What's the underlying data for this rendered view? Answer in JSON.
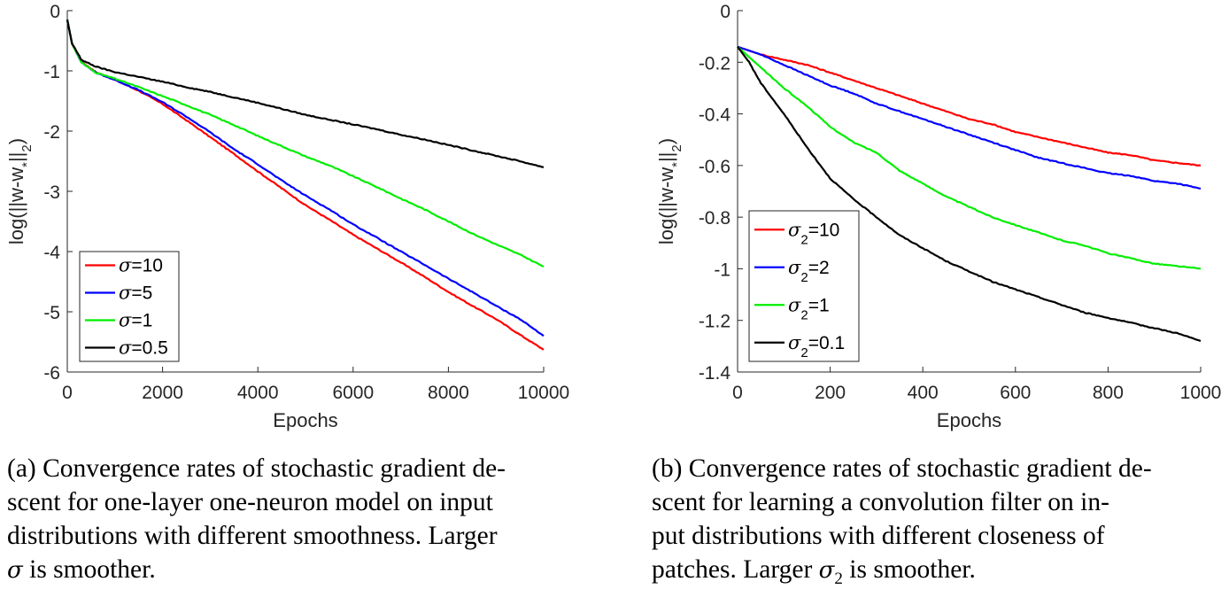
{
  "chart_data": [
    {
      "type": "line",
      "id": "a",
      "xlabel": "Epochs",
      "ylabel_parts": [
        "log(||w-w",
        "*",
        "||",
        "2",
        ")"
      ],
      "xlim": [
        0,
        10000
      ],
      "ylim": [
        -6,
        0
      ],
      "xticks": [
        0,
        2000,
        4000,
        6000,
        8000,
        10000
      ],
      "xtick_labels": [
        "0",
        "2000",
        "4000",
        "6000",
        "8000",
        "10000"
      ],
      "yticks": [
        0,
        -1,
        -2,
        -3,
        -4,
        -5,
        -6
      ],
      "ytick_labels": [
        "0",
        "-1",
        "-2",
        "-3",
        "-4",
        "-5",
        "-6"
      ],
      "legend_location": "bottom-left",
      "legend_symbol": "σ",
      "legend_sub": "",
      "series": [
        {
          "name": "σ=10",
          "legend_value": "=10",
          "color": "#ff0000",
          "x": [
            0,
            100,
            300,
            600,
            1000,
            1500,
            2000,
            2500,
            3000,
            3500,
            4000,
            4500,
            5000,
            5500,
            6000,
            6500,
            7000,
            7500,
            8000,
            8500,
            9000,
            9500,
            10000
          ],
          "y": [
            -0.15,
            -0.55,
            -0.85,
            -1.02,
            -1.15,
            -1.33,
            -1.55,
            -1.82,
            -2.1,
            -2.38,
            -2.67,
            -2.95,
            -3.23,
            -3.47,
            -3.72,
            -3.95,
            -4.18,
            -4.42,
            -4.67,
            -4.9,
            -5.12,
            -5.38,
            -5.63
          ]
        },
        {
          "name": "σ=5",
          "legend_value": "=5",
          "color": "#0000ff",
          "x": [
            0,
            100,
            300,
            600,
            1000,
            1500,
            2000,
            2500,
            3000,
            3500,
            4000,
            4500,
            5000,
            5500,
            6000,
            6500,
            7000,
            7500,
            8000,
            8500,
            9000,
            9500,
            10000
          ],
          "y": [
            -0.15,
            -0.55,
            -0.86,
            -1.03,
            -1.15,
            -1.32,
            -1.52,
            -1.76,
            -2.02,
            -2.3,
            -2.55,
            -2.82,
            -3.07,
            -3.3,
            -3.55,
            -3.77,
            -4.0,
            -4.22,
            -4.45,
            -4.67,
            -4.9,
            -5.12,
            -5.4
          ]
        },
        {
          "name": "σ=1",
          "legend_value": "=1",
          "color": "#00ee00",
          "x": [
            0,
            100,
            300,
            600,
            1000,
            1500,
            2000,
            2500,
            3000,
            3500,
            4000,
            4500,
            5000,
            5500,
            6000,
            6500,
            7000,
            7500,
            8000,
            8500,
            9000,
            9500,
            10000
          ],
          "y": [
            -0.15,
            -0.55,
            -0.86,
            -1.03,
            -1.13,
            -1.27,
            -1.42,
            -1.57,
            -1.73,
            -1.9,
            -2.08,
            -2.25,
            -2.42,
            -2.57,
            -2.75,
            -2.93,
            -3.12,
            -3.3,
            -3.5,
            -3.7,
            -3.88,
            -4.05,
            -4.25
          ]
        },
        {
          "name": "σ=0.5",
          "legend_value": "=0.5",
          "color": "#000000",
          "x": [
            0,
            100,
            300,
            600,
            1000,
            1500,
            2000,
            2500,
            3000,
            3500,
            4000,
            4500,
            5000,
            5500,
            6000,
            6500,
            7000,
            7500,
            8000,
            8500,
            9000,
            9500,
            10000
          ],
          "y": [
            -0.15,
            -0.55,
            -0.82,
            -0.93,
            -1.02,
            -1.1,
            -1.18,
            -1.27,
            -1.35,
            -1.44,
            -1.53,
            -1.63,
            -1.73,
            -1.81,
            -1.89,
            -1.97,
            -2.06,
            -2.14,
            -2.23,
            -2.32,
            -2.41,
            -2.5,
            -2.6
          ]
        }
      ]
    },
    {
      "type": "line",
      "id": "b",
      "xlabel": "Epochs",
      "ylabel_parts": [
        "log(||w-w",
        "*",
        "||",
        "2",
        ")"
      ],
      "xlim": [
        0,
        1000
      ],
      "ylim": [
        -1.4,
        0
      ],
      "xticks": [
        0,
        200,
        400,
        600,
        800,
        1000
      ],
      "xtick_labels": [
        "0",
        "200",
        "400",
        "600",
        "800",
        "1000"
      ],
      "yticks": [
        0,
        -0.2,
        -0.4,
        -0.6,
        -0.8,
        -1,
        -1.2,
        -1.4
      ],
      "ytick_labels": [
        "0",
        "-0.2",
        "-0.4",
        "-0.6",
        "-0.8",
        "-1",
        "-1.2",
        "-1.4"
      ],
      "legend_location": "bottom-left",
      "legend_symbol": "σ",
      "legend_sub": "2",
      "series": [
        {
          "name": "σ2=10",
          "legend_value": "=10",
          "color": "#ff0000",
          "x": [
            0,
            50,
            100,
            150,
            200,
            250,
            300,
            350,
            400,
            450,
            500,
            550,
            600,
            650,
            700,
            750,
            800,
            850,
            900,
            950,
            1000
          ],
          "y": [
            -0.14,
            -0.17,
            -0.19,
            -0.21,
            -0.24,
            -0.27,
            -0.3,
            -0.33,
            -0.36,
            -0.39,
            -0.42,
            -0.44,
            -0.47,
            -0.49,
            -0.51,
            -0.53,
            -0.55,
            -0.56,
            -0.58,
            -0.59,
            -0.6
          ]
        },
        {
          "name": "σ2=2",
          "legend_value": "=2",
          "color": "#0000ff",
          "x": [
            0,
            50,
            100,
            150,
            200,
            250,
            300,
            350,
            400,
            450,
            500,
            550,
            600,
            650,
            700,
            750,
            800,
            850,
            900,
            950,
            1000
          ],
          "y": [
            -0.14,
            -0.17,
            -0.21,
            -0.25,
            -0.29,
            -0.32,
            -0.36,
            -0.39,
            -0.42,
            -0.45,
            -0.48,
            -0.51,
            -0.54,
            -0.57,
            -0.59,
            -0.61,
            -0.63,
            -0.64,
            -0.66,
            -0.67,
            -0.69
          ]
        },
        {
          "name": "σ2=1",
          "legend_value": "=1",
          "color": "#00ee00",
          "x": [
            0,
            50,
            100,
            150,
            200,
            250,
            300,
            350,
            400,
            450,
            500,
            550,
            600,
            650,
            700,
            750,
            800,
            850,
            900,
            950,
            1000
          ],
          "y": [
            -0.14,
            -0.22,
            -0.3,
            -0.37,
            -0.45,
            -0.51,
            -0.55,
            -0.62,
            -0.67,
            -0.72,
            -0.76,
            -0.8,
            -0.83,
            -0.86,
            -0.89,
            -0.91,
            -0.94,
            -0.96,
            -0.98,
            -0.99,
            -1.0
          ]
        },
        {
          "name": "σ2=0.1",
          "legend_value": "=0.1",
          "color": "#000000",
          "x": [
            0,
            25,
            50,
            100,
            150,
            200,
            250,
            300,
            350,
            400,
            450,
            500,
            550,
            600,
            650,
            700,
            750,
            800,
            850,
            900,
            950,
            1000
          ],
          "y": [
            -0.14,
            -0.2,
            -0.28,
            -0.4,
            -0.53,
            -0.65,
            -0.73,
            -0.8,
            -0.87,
            -0.92,
            -0.97,
            -1.01,
            -1.05,
            -1.08,
            -1.11,
            -1.14,
            -1.17,
            -1.19,
            -1.21,
            -1.23,
            -1.25,
            -1.28
          ]
        }
      ]
    }
  ],
  "captions": {
    "a": {
      "line1": "(a) Convergence rates of stochastic gradient de-",
      "line2": "scent for one-layer one-neuron model on input",
      "line3": "distributions with different smoothness. Larger",
      "line4_sym": "σ",
      "line4_rest": " is smoother."
    },
    "b": {
      "line1": "(b) Convergence rates of stochastic gradient de-",
      "line2": "scent for learning a convolution filter on in-",
      "line3": "put distributions with different closeness of",
      "line4_pre": "patches. Larger ",
      "line4_sym": "σ",
      "line4_sub": "2",
      "line4_rest": " is smoother."
    }
  }
}
